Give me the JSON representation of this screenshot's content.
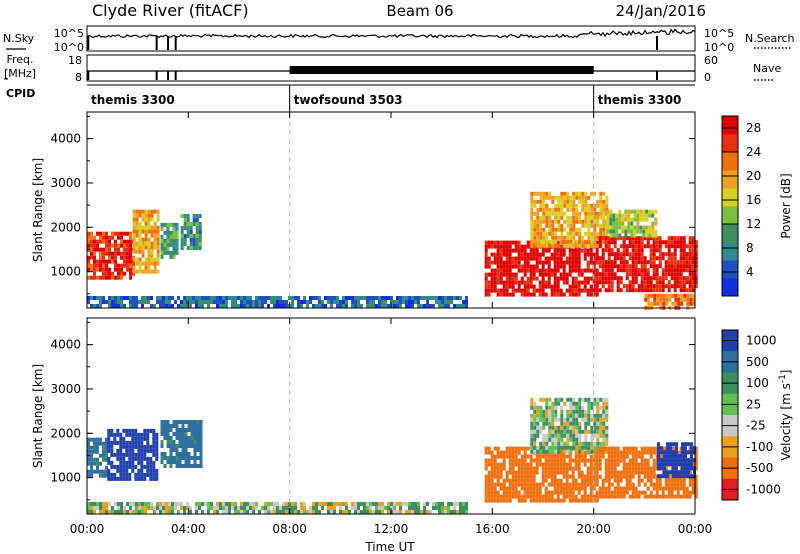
{
  "header": {
    "station": "Clyde River (fitACF)",
    "beam": "Beam 06",
    "date": "24/Jan/2016"
  },
  "top_panels": {
    "nsky_label": "N.Sky",
    "nsearch_label": "N.Search",
    "count_ticks": [
      "10^5",
      "10^0"
    ],
    "freq_label_line1": "Freq.",
    "freq_label_line2": "[MHz]",
    "freq_ticks": [
      "18",
      "8"
    ],
    "nave_label": "Nave",
    "nave_ticks": [
      "60",
      "0"
    ],
    "cpid_label": "CPID",
    "modes": [
      {
        "name": "themis 3300",
        "start_hour": 0,
        "end_hour": 8
      },
      {
        "name": "twofsound 3503",
        "start_hour": 8,
        "end_hour": 20
      },
      {
        "name": "themis 3300",
        "start_hour": 20,
        "end_hour": 24
      }
    ]
  },
  "chart_data": [
    {
      "type": "heatmap",
      "panel": "power",
      "xlabel": "Time UT",
      "ylabel": "Slant Range [km]",
      "xlim": [
        0,
        24
      ],
      "ylim": [
        180,
        4600
      ],
      "x_ticks": [
        "00:00",
        "04:00",
        "08:00",
        "12:00",
        "16:00",
        "20:00",
        "00:00"
      ],
      "y_ticks": [
        "1000",
        "2000",
        "3000",
        "4000"
      ],
      "colorbar": {
        "label": "Power [dB]",
        "ticks": [
          "4",
          "8",
          "12",
          "16",
          "20",
          "24",
          "28"
        ],
        "range": [
          0,
          30
        ]
      },
      "regions": [
        {
          "t0": 0.0,
          "t1": 1.8,
          "r0": 900,
          "r1": 1900,
          "value": 26
        },
        {
          "t0": 1.8,
          "t1": 2.8,
          "r0": 1000,
          "r1": 2400,
          "value": 20
        },
        {
          "t0": 2.9,
          "t1": 3.6,
          "r0": 1300,
          "r1": 2100,
          "value": 10
        },
        {
          "t0": 3.7,
          "t1": 4.5,
          "r0": 1500,
          "r1": 2300,
          "value": 9
        },
        {
          "t0": 0.0,
          "t1": 15.0,
          "r0": 200,
          "r1": 450,
          "value": 6
        },
        {
          "t0": 15.7,
          "t1": 20.2,
          "r0": 500,
          "r1": 1700,
          "value": 29
        },
        {
          "t0": 17.5,
          "t1": 20.5,
          "r0": 1600,
          "r1": 2800,
          "value": 19
        },
        {
          "t0": 20.2,
          "t1": 24.0,
          "r0": 550,
          "r1": 1800,
          "value": 28
        },
        {
          "t0": 20.5,
          "t1": 22.5,
          "r0": 1800,
          "r1": 2400,
          "value": 15
        },
        {
          "t0": 22.0,
          "t1": 24.0,
          "r0": 200,
          "r1": 500,
          "value": 22
        }
      ]
    },
    {
      "type": "heatmap",
      "panel": "velocity",
      "xlabel": "Time UT",
      "ylabel": "Slant Range [km]",
      "xlim": [
        0,
        24
      ],
      "ylim": [
        180,
        4600
      ],
      "x_ticks": [
        "00:00",
        "04:00",
        "08:00",
        "12:00",
        "16:00",
        "20:00",
        "00:00"
      ],
      "y_ticks": [
        "1000",
        "2000",
        "3000",
        "4000"
      ],
      "colorbar": {
        "label": "Velocity [m s^-1]",
        "ticks": [
          "1000",
          "500",
          "100",
          "25",
          "-25",
          "-100",
          "-500",
          "-1000"
        ]
      },
      "regions": [
        {
          "t0": 0.0,
          "t1": 0.8,
          "r0": 1000,
          "r1": 1900,
          "value": 150
        },
        {
          "t0": 0.8,
          "t1": 2.8,
          "r0": 1000,
          "r1": 2100,
          "value": 900
        },
        {
          "t0": 2.9,
          "t1": 4.5,
          "r0": 1300,
          "r1": 2300,
          "value": 150
        },
        {
          "t0": 0.0,
          "t1": 15.0,
          "r0": 200,
          "r1": 450,
          "value": 10
        },
        {
          "t0": 15.7,
          "t1": 20.2,
          "r0": 500,
          "r1": 1700,
          "value": -300
        },
        {
          "t0": 17.5,
          "t1": 20.5,
          "r0": 1600,
          "r1": 2800,
          "value": 10
        },
        {
          "t0": 20.2,
          "t1": 24.0,
          "r0": 600,
          "r1": 1700,
          "value": -200
        },
        {
          "t0": 22.5,
          "t1": 24.0,
          "r0": 1000,
          "r1": 1800,
          "value": 700
        }
      ]
    }
  ]
}
